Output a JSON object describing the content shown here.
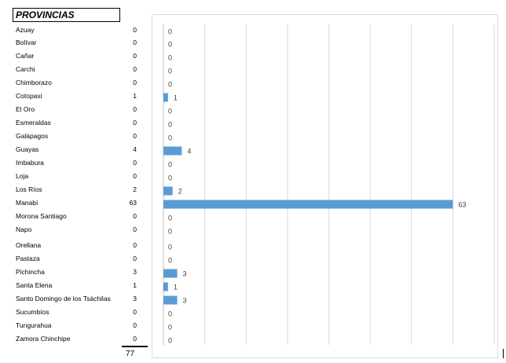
{
  "header": "PROVINCIAS",
  "total": "77",
  "chart_data": {
    "type": "bar",
    "orientation": "horizontal",
    "categories": [
      "Azuay",
      "Bolívar",
      "Cañar",
      "Carchi",
      "Chimborazo",
      "Cotopaxi",
      "El Oro",
      "Esmeraldas",
      "Galápagos",
      "Guayas",
      "Imbabura",
      "Loja",
      "Los Ríos",
      "Manabí",
      "Morona Santiago",
      "Napo",
      "Orellana",
      "Pastaza",
      "Pichincha",
      "Santa Elena",
      "Santo Domingo de los Tsáchilas",
      "Sucumbíos",
      "Tungurahua",
      "Zamora Chinchipe"
    ],
    "values": [
      0,
      0,
      0,
      0,
      0,
      1,
      0,
      0,
      0,
      4,
      0,
      0,
      2,
      63,
      0,
      0,
      0,
      0,
      3,
      1,
      3,
      0,
      0,
      0
    ],
    "xlim": [
      0,
      72
    ],
    "grid": true,
    "bar_color": "#5b9bd5"
  }
}
